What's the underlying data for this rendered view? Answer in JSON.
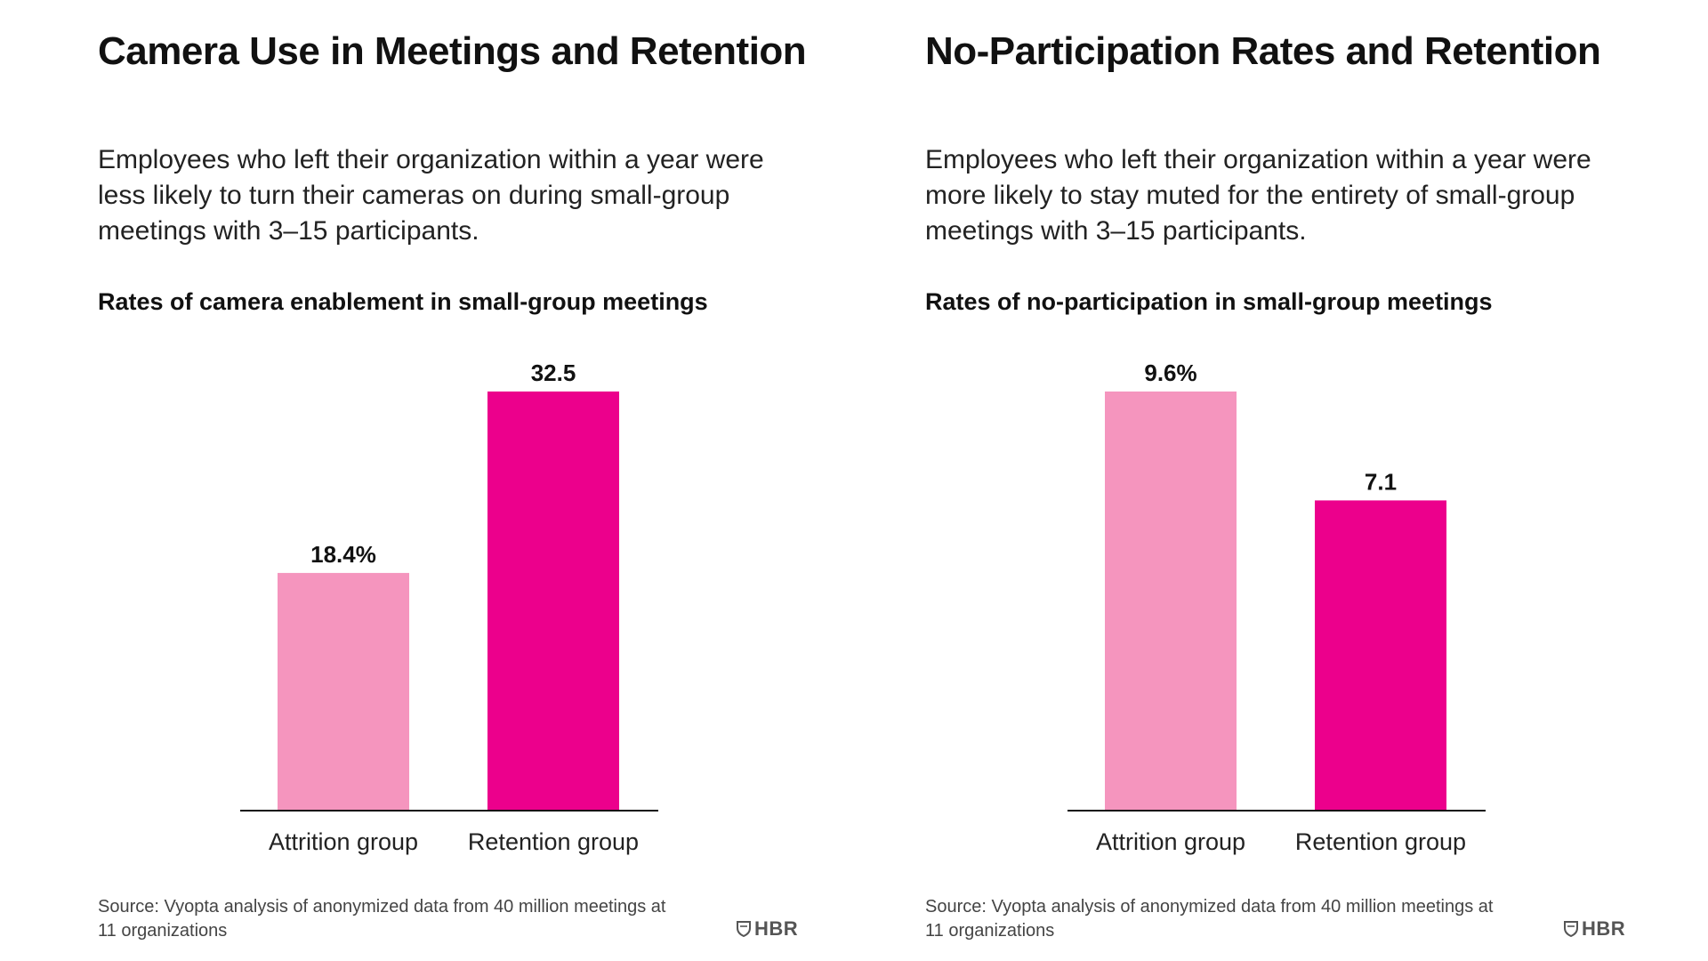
{
  "panels": [
    {
      "title": "Camera Use in Meetings and Retention",
      "subtitle": "Employees who left their organization within a year were less likely to turn their cameras on during small-group meetings with 3–15 participants.",
      "chart_heading": "Rates of camera enablement in small-group meetings",
      "source": "Source: Vyopta analysis of anonymized data from 40 million meetings at 11 organizations",
      "logo_text": "HBR",
      "logo_icon": "shield-icon"
    },
    {
      "title": "No-Participation Rates and Retention",
      "subtitle": "Employees who left their organization within a year were more likely to stay muted for the entirety of small-group meetings with 3–15 participants.",
      "chart_heading": "Rates of no-participation in small-group meetings",
      "source": "Source: Vyopta analysis of anonymized data from 40 million meetings at 11 organizations",
      "logo_text": "HBR",
      "logo_icon": "shield-icon"
    }
  ],
  "chart_data": [
    {
      "type": "bar",
      "title": "Rates of camera enablement in small-group meetings",
      "categories": [
        "Attrition group",
        "Retention group"
      ],
      "values": [
        18.4,
        32.5
      ],
      "value_labels": [
        "18.4%",
        "32.5"
      ],
      "colors": [
        "#f595be",
        "#ec008c"
      ],
      "xlabel": "",
      "ylabel": "",
      "ylim": [
        0,
        32.5
      ],
      "grid": false,
      "legend": "none"
    },
    {
      "type": "bar",
      "title": "Rates of no-participation in small-group meetings",
      "categories": [
        "Attrition group",
        "Retention group"
      ],
      "values": [
        9.6,
        7.1
      ],
      "value_labels": [
        "9.6%",
        "7.1"
      ],
      "colors": [
        "#f595be",
        "#ec008c"
      ],
      "xlabel": "",
      "ylabel": "",
      "ylim": [
        0,
        9.6
      ],
      "grid": false,
      "legend": "none"
    }
  ]
}
